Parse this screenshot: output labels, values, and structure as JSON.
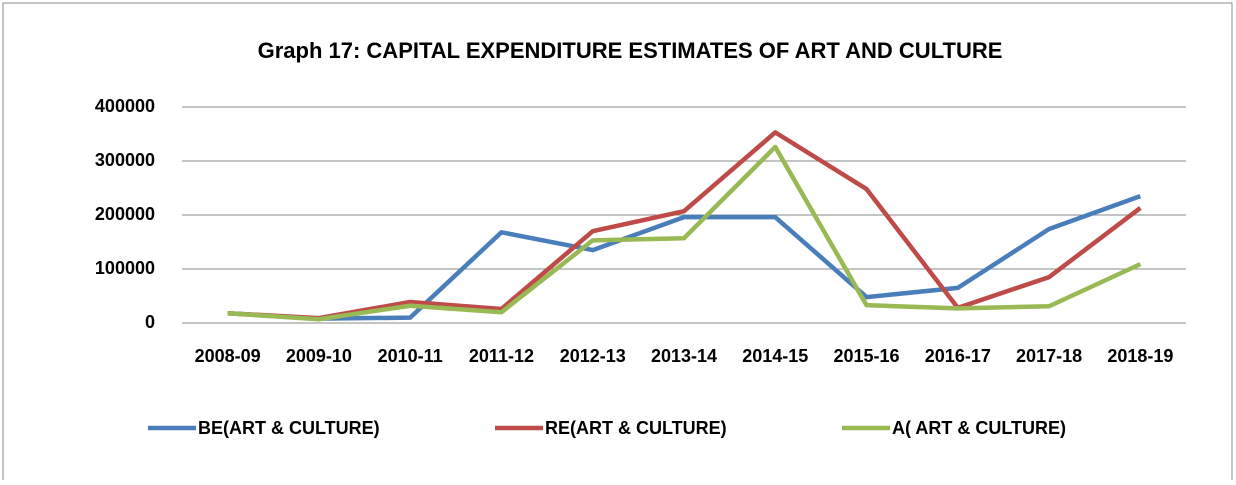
{
  "chart_data": {
    "type": "line",
    "title": "Graph 17: CAPITAL EXPENDITURE ESTIMATES OF ART AND CULTURE",
    "categories": [
      "2008-09",
      "2009-10",
      "2010-11",
      "2011-12",
      "2012-13",
      "2013-14",
      "2014-15",
      "2015-16",
      "2016-17",
      "2017-18",
      "2018-19"
    ],
    "series": [
      {
        "name": "BE(ART & CULTURE)",
        "color": "#4a7ebb",
        "values": [
          18000,
          8000,
          10000,
          168000,
          135000,
          196000,
          196000,
          48000,
          65000,
          174000,
          235000
        ]
      },
      {
        "name": "RE(ART & CULTURE)",
        "color": "#be4b48",
        "values": [
          18000,
          9000,
          39000,
          26000,
          170000,
          207000,
          353000,
          248000,
          28000,
          85000,
          213000
        ]
      },
      {
        "name": "A( ART & CULTURE)",
        "color": "#98b954",
        "values": [
          18000,
          7000,
          32000,
          20000,
          153000,
          157000,
          326000,
          33000,
          27000,
          31000,
          109000
        ]
      }
    ],
    "ylim": [
      0,
      400000
    ],
    "yticks": [
      0,
      100000,
      200000,
      300000,
      400000
    ],
    "grid": true,
    "legend": "bottom"
  }
}
